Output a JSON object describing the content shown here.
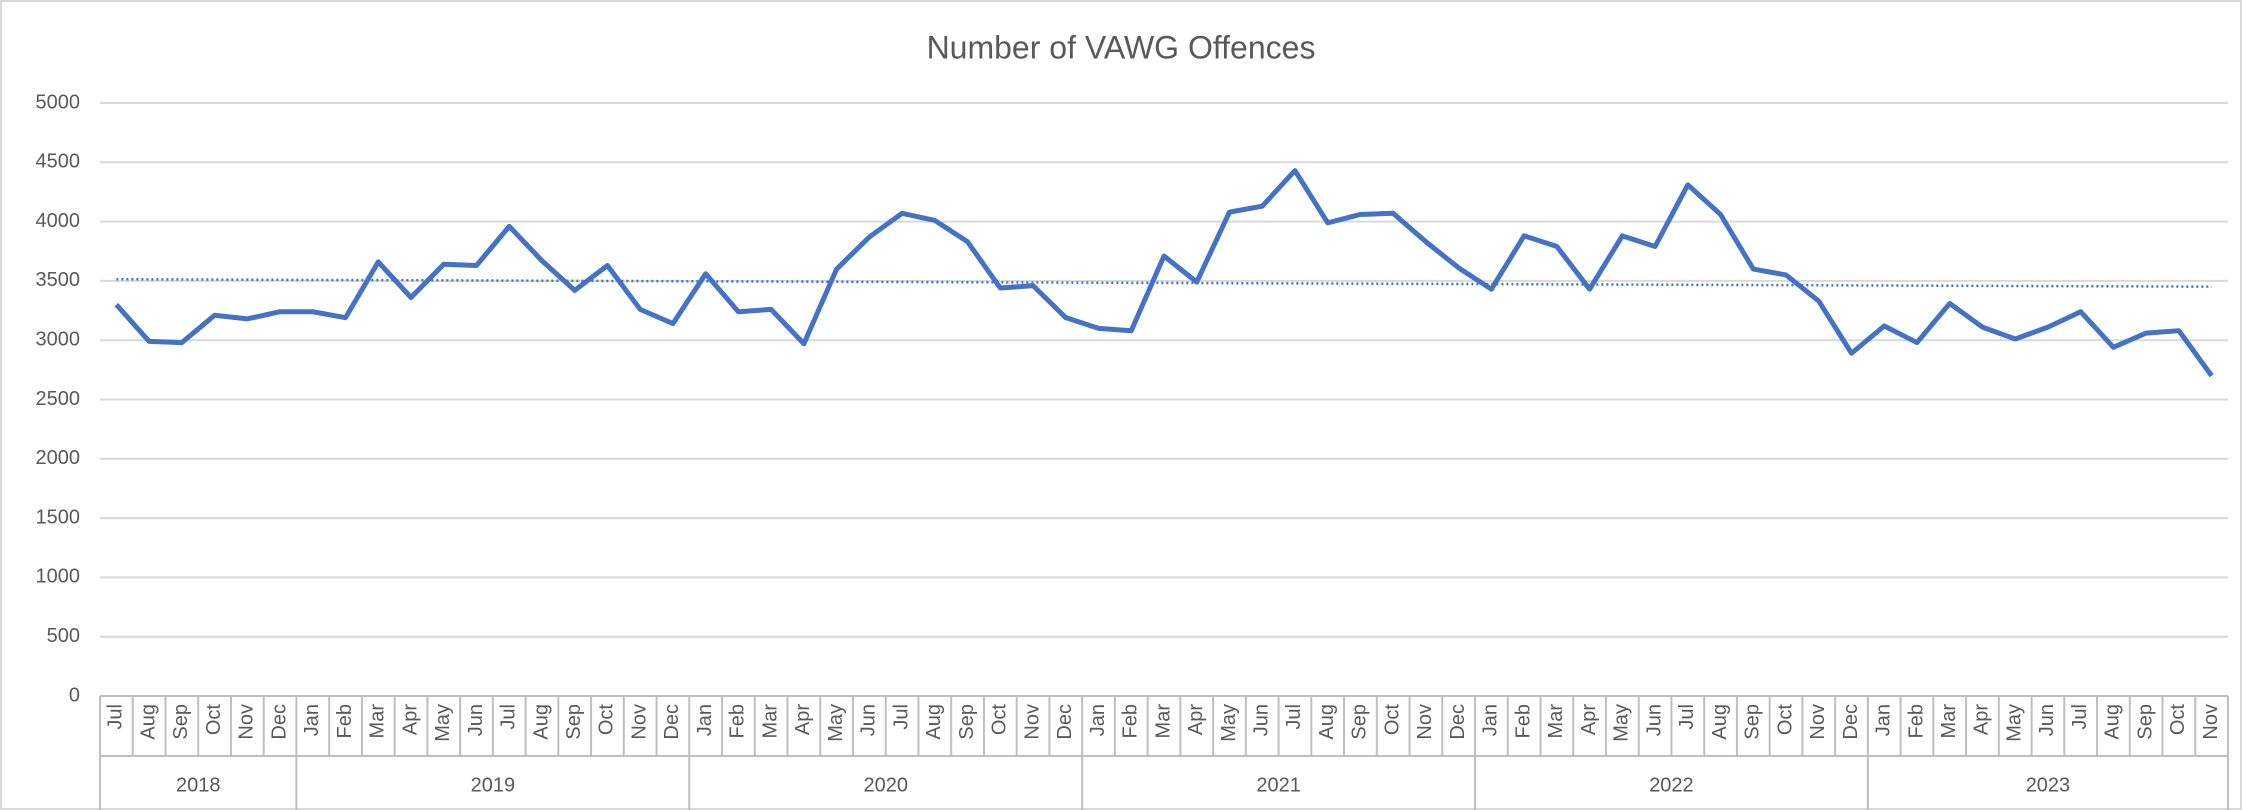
{
  "chart_data": {
    "type": "line",
    "title": "Number of VAWG Offences",
    "categories": [
      "Jul",
      "Aug",
      "Sep",
      "Oct",
      "Nov",
      "Dec",
      "Jan",
      "Feb",
      "Mar",
      "Apr",
      "May",
      "Jun",
      "Jul",
      "Aug",
      "Sep",
      "Oct",
      "Nov",
      "Dec",
      "Jan",
      "Feb",
      "Mar",
      "Apr",
      "May",
      "Jun",
      "Jul",
      "Aug",
      "Sep",
      "Oct",
      "Nov",
      "Dec",
      "Jan",
      "Feb",
      "Mar",
      "Apr",
      "May",
      "Jun",
      "Jul",
      "Aug",
      "Sep",
      "Oct",
      "Nov",
      "Dec",
      "Jan",
      "Feb",
      "Mar",
      "Apr",
      "May",
      "Jun",
      "Jul",
      "Aug",
      "Sep",
      "Oct",
      "Nov",
      "Dec",
      "Jan",
      "Feb",
      "Mar",
      "Apr",
      "May",
      "Jun",
      "Jul",
      "Aug",
      "Sep",
      "Oct",
      "Nov"
    ],
    "category_years": [
      "2018",
      "2018",
      "2018",
      "2018",
      "2018",
      "2018",
      "2019",
      "2019",
      "2019",
      "2019",
      "2019",
      "2019",
      "2019",
      "2019",
      "2019",
      "2019",
      "2019",
      "2019",
      "2020",
      "2020",
      "2020",
      "2020",
      "2020",
      "2020",
      "2020",
      "2020",
      "2020",
      "2020",
      "2020",
      "2020",
      "2021",
      "2021",
      "2021",
      "2021",
      "2021",
      "2021",
      "2021",
      "2021",
      "2021",
      "2021",
      "2021",
      "2021",
      "2022",
      "2022",
      "2022",
      "2022",
      "2022",
      "2022",
      "2022",
      "2022",
      "2022",
      "2022",
      "2022",
      "2022",
      "2023",
      "2023",
      "2023",
      "2023",
      "2023",
      "2023",
      "2023",
      "2023",
      "2023",
      "2023",
      "2023"
    ],
    "series": [
      {
        "color": "#4472c4",
        "trendline": true,
        "values": [
          3300,
          2990,
          2980,
          3210,
          3180,
          3240,
          3240,
          3190,
          3660,
          3360,
          3640,
          3630,
          3960,
          3670,
          3420,
          3630,
          3260,
          3140,
          3560,
          3240,
          3260,
          2970,
          3600,
          3870,
          4070,
          4010,
          3830,
          3440,
          3460,
          3190,
          3100,
          3080,
          3710,
          3490,
          4080,
          4130,
          4430,
          3990,
          4060,
          4070,
          3830,
          3610,
          3430,
          3880,
          3790,
          3430,
          3880,
          3790,
          4310,
          4060,
          3600,
          3550,
          3330,
          2890,
          3120,
          2980,
          3310,
          3110,
          3010,
          3110,
          3240,
          2940,
          3060,
          3080,
          2700
        ]
      }
    ],
    "ylim": [
      0,
      5000
    ],
    "yticks": [
      0,
      500,
      1000,
      1500,
      2000,
      2500,
      3000,
      3500,
      4000,
      4500,
      5000
    ],
    "grid": true
  }
}
